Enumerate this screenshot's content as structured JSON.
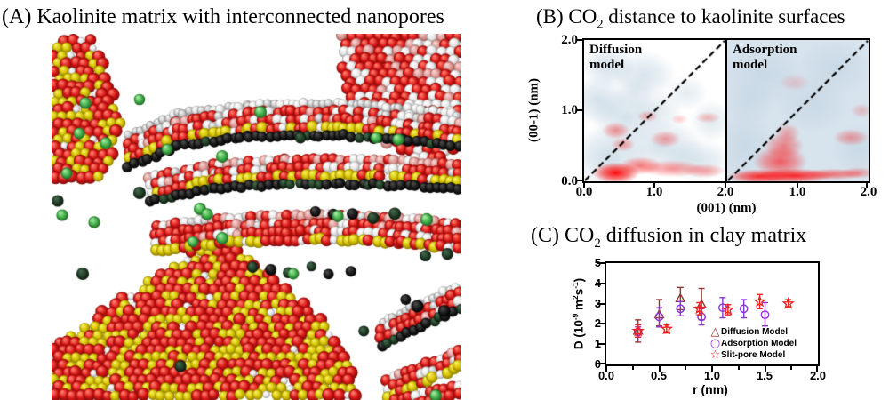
{
  "panel_a": {
    "title": "(A) Kaolinite matrix with interconnected nanopores",
    "render": {
      "seed": 7,
      "atom_colors": {
        "red": [
          "#d81616",
          "#ff7a6a",
          "#7a0b08"
        ],
        "white": [
          "#e8e8e8",
          "#ffffff",
          "#9a9a9a"
        ],
        "gray": [
          "#c4c4c4",
          "#f4f4f4",
          "#7e7e7e"
        ],
        "yellow": [
          "#d8c400",
          "#f5ef60",
          "#8a7a00"
        ],
        "pink": [
          "#e09a96",
          "#f6d3d0",
          "#a05a56"
        ],
        "dark": [
          "#1c1c1c",
          "#4a4a4a",
          "#000000"
        ],
        "green": [
          "#46b44e",
          "#a5e8a0",
          "#1d6424"
        ],
        "dgreen": [
          "#23422a",
          "#44664a",
          "#0a150b"
        ]
      },
      "slabs": [
        {
          "pts": [
            [
              87,
              114
            ],
            [
              142,
              90
            ],
            [
              222,
              80
            ],
            [
              322,
              78
            ],
            [
              402,
              84
            ],
            [
              460,
              92
            ]
          ],
          "rows": [
            "gray",
            "rw",
            "rw",
            "yellow",
            "dark"
          ]
        },
        {
          "pts": [
            [
              110,
              162
            ],
            [
              182,
              147
            ],
            [
              262,
              142
            ],
            [
              362,
              142
            ],
            [
              460,
              148
            ]
          ],
          "rows": [
            "pinkred",
            "rw",
            "yellow",
            "dark"
          ]
        },
        {
          "pts": [
            [
              117,
              217
            ],
            [
              202,
              207
            ],
            [
              302,
              204
            ],
            [
              392,
              208
            ],
            [
              460,
              214
            ]
          ],
          "rows": [
            "pinkred",
            "rw",
            "rw",
            "yellow"
          ]
        },
        {
          "pts": [
            [
              372,
              324
            ],
            [
              460,
              282
            ]
          ],
          "rows": [
            "gray",
            "rw",
            "rw",
            "dark"
          ]
        },
        {
          "pts": [
            [
              378,
              390
            ],
            [
              460,
              356
            ]
          ],
          "rows": [
            "rw",
            "rw",
            "yellow"
          ]
        },
        {
          "pts": [
            [
              387,
              412
            ],
            [
              460,
              396
            ]
          ],
          "rows": [
            "rw",
            "rw"
          ]
        }
      ],
      "polys": [
        {
          "poly": [
            [
              325,
              0
            ],
            [
              460,
              0
            ],
            [
              460,
              134
            ],
            [
              412,
              144
            ],
            [
              372,
              122
            ],
            [
              339,
              84
            ],
            [
              325,
              34
            ]
          ],
          "pal": "rwdense"
        },
        {
          "poly": [
            [
              0,
              8
            ],
            [
              50,
              5
            ],
            [
              62,
              48
            ],
            [
              82,
              97
            ],
            [
              60,
              162
            ],
            [
              2,
              168
            ]
          ],
          "pal": "yr"
        },
        {
          "poly": [
            [
              0,
              350
            ],
            [
              174,
              234
            ],
            [
              210,
              244
            ],
            [
              252,
              274
            ],
            [
              297,
              314
            ],
            [
              332,
              357
            ],
            [
              347,
              412
            ],
            [
              0,
              412
            ]
          ],
          "pal": "yr"
        }
      ],
      "greens": [
        [
          38,
          78
        ],
        [
          31,
          112
        ],
        [
          61,
          123
        ],
        [
          17,
          157
        ],
        [
          7,
          188
        ],
        [
          48,
          212
        ],
        [
          12,
          204
        ],
        [
          99,
          74
        ],
        [
          235,
          88
        ],
        [
          280,
          117
        ],
        [
          365,
          117
        ],
        [
          390,
          119
        ],
        [
          130,
          130
        ],
        [
          192,
          138
        ],
        [
          99,
          179
        ],
        [
          167,
          197
        ],
        [
          175,
          203
        ],
        [
          159,
          234
        ],
        [
          192,
          230
        ],
        [
          35,
          270
        ],
        [
          322,
          205
        ],
        [
          422,
          209
        ],
        [
          272,
          270
        ],
        [
          432,
          407
        ],
        [
          145,
          374
        ]
      ],
      "darks": [
        [
          297,
          200
        ],
        [
          317,
          204
        ],
        [
          337,
          202
        ],
        [
          362,
          206
        ],
        [
          387,
          202
        ],
        [
          227,
          262
        ],
        [
          247,
          264
        ],
        [
          267,
          268
        ],
        [
          292,
          262
        ],
        [
          312,
          270
        ],
        [
          337,
          267
        ],
        [
          397,
          300
        ],
        [
          412,
          307
        ],
        [
          442,
          312
        ],
        [
          350,
          334
        ],
        [
          420,
          250
        ],
        [
          445,
          248
        ]
      ]
    }
  },
  "panel_b": {
    "title_prefix": "(B) CO",
    "title_sub": "2",
    "title_suffix": " distance to kaolinite surfaces",
    "ylabel": "(00-1) (nm)",
    "xlabel": "(001) (nm)",
    "y_ticks": [
      "2.0",
      "1.0",
      "0.0"
    ],
    "x_ticks": [
      "0.0",
      "1.0",
      "2.0",
      "1.0",
      "2.0"
    ],
    "plots": [
      {
        "name": "Diffusion model",
        "label_lines": [
          "Diffusion",
          "model"
        ],
        "base": "#ffffff",
        "blue_color": "#a9c4d6",
        "red_color": "#ff0000",
        "blue_blobs": [
          [
            0.35,
            0.35,
            0.55,
            0.45,
            0.55
          ],
          [
            0.2,
            1.15,
            0.4,
            0.35,
            0.5
          ],
          [
            0.35,
            1.62,
            0.38,
            0.3,
            0.5
          ],
          [
            0.85,
            1.5,
            0.45,
            0.35,
            0.45
          ],
          [
            0.6,
            0.9,
            0.5,
            0.4,
            0.5
          ],
          [
            1.1,
            0.5,
            0.6,
            0.4,
            0.5
          ],
          [
            1.6,
            0.3,
            0.5,
            0.3,
            0.45
          ],
          [
            1.8,
            0.85,
            0.3,
            0.3,
            0.35
          ],
          [
            1.45,
            1.25,
            0.3,
            0.25,
            0.3
          ],
          [
            1.05,
            1.0,
            0.35,
            0.3,
            0.35
          ],
          [
            0.7,
            1.25,
            0.3,
            0.25,
            0.3
          ]
        ],
        "red_blobs": [
          [
            0.45,
            0.12,
            0.33,
            0.15,
            0.95
          ],
          [
            0.8,
            0.22,
            0.3,
            0.13,
            0.5
          ],
          [
            1.25,
            0.18,
            0.45,
            0.12,
            0.4
          ],
          [
            1.7,
            0.15,
            0.3,
            0.1,
            0.35
          ],
          [
            0.45,
            0.72,
            0.2,
            0.12,
            0.4
          ],
          [
            0.55,
            0.52,
            0.17,
            0.1,
            0.35
          ],
          [
            1.15,
            0.6,
            0.22,
            0.12,
            0.35
          ],
          [
            0.9,
            0.92,
            0.15,
            0.08,
            0.3
          ],
          [
            1.75,
            0.9,
            0.18,
            0.08,
            0.25
          ],
          [
            1.35,
            0.88,
            0.12,
            0.07,
            0.2
          ]
        ]
      },
      {
        "name": "Adsorption model",
        "label_lines": [
          "Adsorption",
          "model"
        ],
        "base": "#d7e3ed",
        "blue_color": "#a9c4d6",
        "red_color": "#ff0000",
        "blue_blobs": [
          [
            0.5,
            1.5,
            0.6,
            0.45,
            0.3
          ],
          [
            1.5,
            1.6,
            0.5,
            0.4,
            0.3
          ],
          [
            1.2,
            1.1,
            0.5,
            0.4,
            0.3
          ],
          [
            0.25,
            0.5,
            0.4,
            0.5,
            0.3
          ],
          [
            1.85,
            0.45,
            0.35,
            0.35,
            0.3
          ],
          [
            0.3,
            1.1,
            0.35,
            0.3,
            0.25
          ]
        ],
        "red_blobs": [
          [
            0.45,
            0.07,
            0.45,
            0.1,
            0.8
          ],
          [
            0.95,
            0.08,
            0.55,
            0.1,
            0.85
          ],
          [
            1.5,
            0.1,
            0.45,
            0.08,
            0.5
          ],
          [
            1.85,
            0.12,
            0.25,
            0.08,
            0.35
          ],
          [
            0.75,
            0.28,
            0.38,
            0.22,
            0.6
          ],
          [
            0.8,
            0.5,
            0.28,
            0.18,
            0.45
          ],
          [
            0.85,
            0.68,
            0.18,
            0.14,
            0.3
          ],
          [
            1.75,
            0.62,
            0.25,
            0.12,
            0.35
          ],
          [
            1.9,
            1.0,
            0.15,
            0.1,
            0.2
          ],
          [
            0.95,
            1.4,
            0.22,
            0.12,
            0.15
          ]
        ]
      }
    ],
    "diagonal": "dashed black y=x from (0,0) to (2,2)"
  },
  "panel_c": {
    "title_prefix": "(C) CO",
    "title_sub": "2",
    "title_suffix": " diffusion in clay matrix",
    "ylabel_parts": {
      "p0": "D (10",
      "s0": "-9",
      "p1": " m",
      "s1": "2",
      "p2": "s",
      "s2": "-1",
      "p3": ")"
    },
    "xlabel": "r (nm)"
  },
  "chart_data": {
    "type": "scatter",
    "title": "(C) CO2 diffusion in clay matrix",
    "xlabel": "r (nm)",
    "ylabel": "D (10^-9 m^2 s^-1)",
    "xlim": [
      0.0,
      2.0
    ],
    "ylim": [
      0,
      5
    ],
    "x_tick_labels": [
      "0.0",
      "0.5",
      "1.0",
      "1.5",
      "2.0"
    ],
    "y_tick_labels": [
      "0",
      "1",
      "2",
      "3",
      "4",
      "5"
    ],
    "grid": false,
    "legend_position": "inside bottom-right",
    "error_bars": true,
    "series": [
      {
        "name": "Diffusion Model",
        "marker": "triangle",
        "glyph": "△",
        "color": "#993333",
        "points": [
          {
            "x": 0.3,
            "y": 1.65,
            "lo": 1.1,
            "hi": 2.2
          },
          {
            "x": 0.5,
            "y": 2.45,
            "lo": 1.9,
            "hi": 3.2
          },
          {
            "x": 0.7,
            "y": 3.25,
            "lo": 2.7,
            "hi": 3.8
          },
          {
            "x": 0.9,
            "y": 2.95,
            "lo": 2.2,
            "hi": 3.75
          }
        ]
      },
      {
        "name": "Adsorption Model",
        "marker": "circle",
        "glyph": "○",
        "color": "#8a35d6",
        "points": [
          {
            "x": 0.3,
            "y": 1.6,
            "lo": 1.35,
            "hi": 1.85
          },
          {
            "x": 0.5,
            "y": 2.35,
            "lo": 1.85,
            "hi": 2.8
          },
          {
            "x": 0.7,
            "y": 2.75,
            "lo": 2.4,
            "hi": 3.1
          },
          {
            "x": 0.9,
            "y": 2.35,
            "lo": 1.95,
            "hi": 2.75
          },
          {
            "x": 1.1,
            "y": 2.8,
            "lo": 2.3,
            "hi": 3.3
          },
          {
            "x": 1.3,
            "y": 2.75,
            "lo": 2.3,
            "hi": 3.2
          },
          {
            "x": 1.5,
            "y": 2.45,
            "lo": 1.9,
            "hi": 3.05
          }
        ]
      },
      {
        "name": "Slit-pore Model",
        "marker": "star",
        "glyph": "☆",
        "color": "#ee2222",
        "points": [
          {
            "x": 0.3,
            "y": 1.65,
            "lo": 1.35,
            "hi": 1.95
          },
          {
            "x": 0.57,
            "y": 1.75,
            "lo": 1.55,
            "hi": 1.95
          },
          {
            "x": 0.88,
            "y": 2.75,
            "lo": 2.45,
            "hi": 3.05
          },
          {
            "x": 1.15,
            "y": 2.7,
            "lo": 2.45,
            "hi": 2.95
          },
          {
            "x": 1.45,
            "y": 3.1,
            "lo": 2.75,
            "hi": 3.45
          },
          {
            "x": 1.72,
            "y": 3.0,
            "lo": 2.8,
            "hi": 3.2
          }
        ]
      }
    ]
  }
}
